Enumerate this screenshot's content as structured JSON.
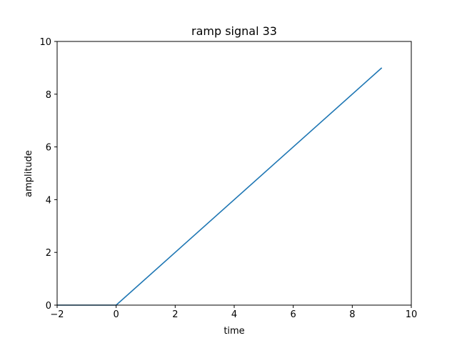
{
  "chart_data": {
    "type": "line",
    "title": "ramp signal 33",
    "xlabel": "time",
    "ylabel": "amplitude",
    "xlim": [
      -2,
      10
    ],
    "ylim": [
      0,
      10
    ],
    "xticks": [
      -2,
      0,
      2,
      4,
      6,
      8,
      10
    ],
    "yticks": [
      0,
      2,
      4,
      6,
      8,
      10
    ],
    "xtick_labels": [
      "−2",
      "0",
      "2",
      "4",
      "6",
      "8",
      "10"
    ],
    "ytick_labels": [
      "0",
      "2",
      "4",
      "6",
      "8",
      "10"
    ],
    "grid": false,
    "series": [
      {
        "color": "#1f77b4",
        "x": [
          -2,
          0,
          9
        ],
        "y": [
          0,
          0,
          9
        ]
      }
    ]
  }
}
